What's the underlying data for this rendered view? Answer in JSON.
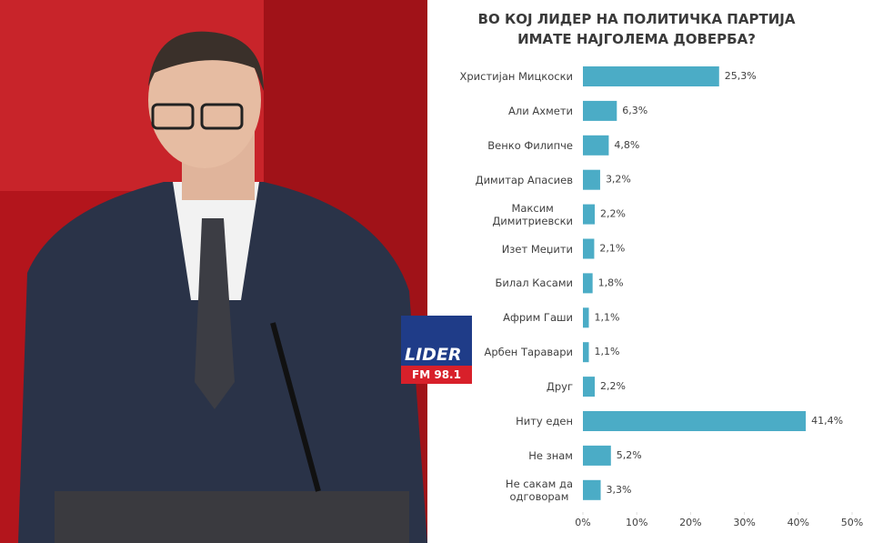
{
  "logo": {
    "name": "LIDER",
    "frequency": "FM 98.1"
  },
  "chart_data": {
    "type": "bar",
    "orientation": "horizontal",
    "title": "ВО КОЈ ЛИДЕР НА ПОЛИТИЧКА ПАРТИЈА\nИМАТЕ НАЈГОЛЕМА ДОВЕРБА?",
    "categories": [
      "Христијан Мицкоски",
      "Али Ахмети",
      "Венко Филипче",
      "Димитар Апасиев",
      "Максим\nДимитриевски",
      "Изет Меџити",
      "Билал Касами",
      "Африм Гаши",
      "Арбен Таравари",
      "Друг",
      "Ниту еден",
      "Не знам",
      "Не сакам да\nодговорам"
    ],
    "values": [
      25.3,
      6.3,
      4.8,
      3.2,
      2.2,
      2.1,
      1.8,
      1.1,
      1.1,
      2.2,
      41.4,
      5.2,
      3.3
    ],
    "value_labels": [
      "25,3%",
      "6,3%",
      "4,8%",
      "3,2%",
      "2,2%",
      "2,1%",
      "1,8%",
      "1,1%",
      "1,1%",
      "2,2%",
      "41,4%",
      "5,2%",
      "3,3%"
    ],
    "color": "#4bacc6",
    "xlim": [
      0,
      50
    ],
    "xticks": [
      {
        "value": 0,
        "label": "0%"
      },
      {
        "value": 10,
        "label": "10%"
      },
      {
        "value": 20,
        "label": "20%"
      },
      {
        "value": 30,
        "label": "30%"
      },
      {
        "value": 40,
        "label": "40%"
      },
      {
        "value": 50,
        "label": "50%"
      }
    ],
    "grid": false
  }
}
